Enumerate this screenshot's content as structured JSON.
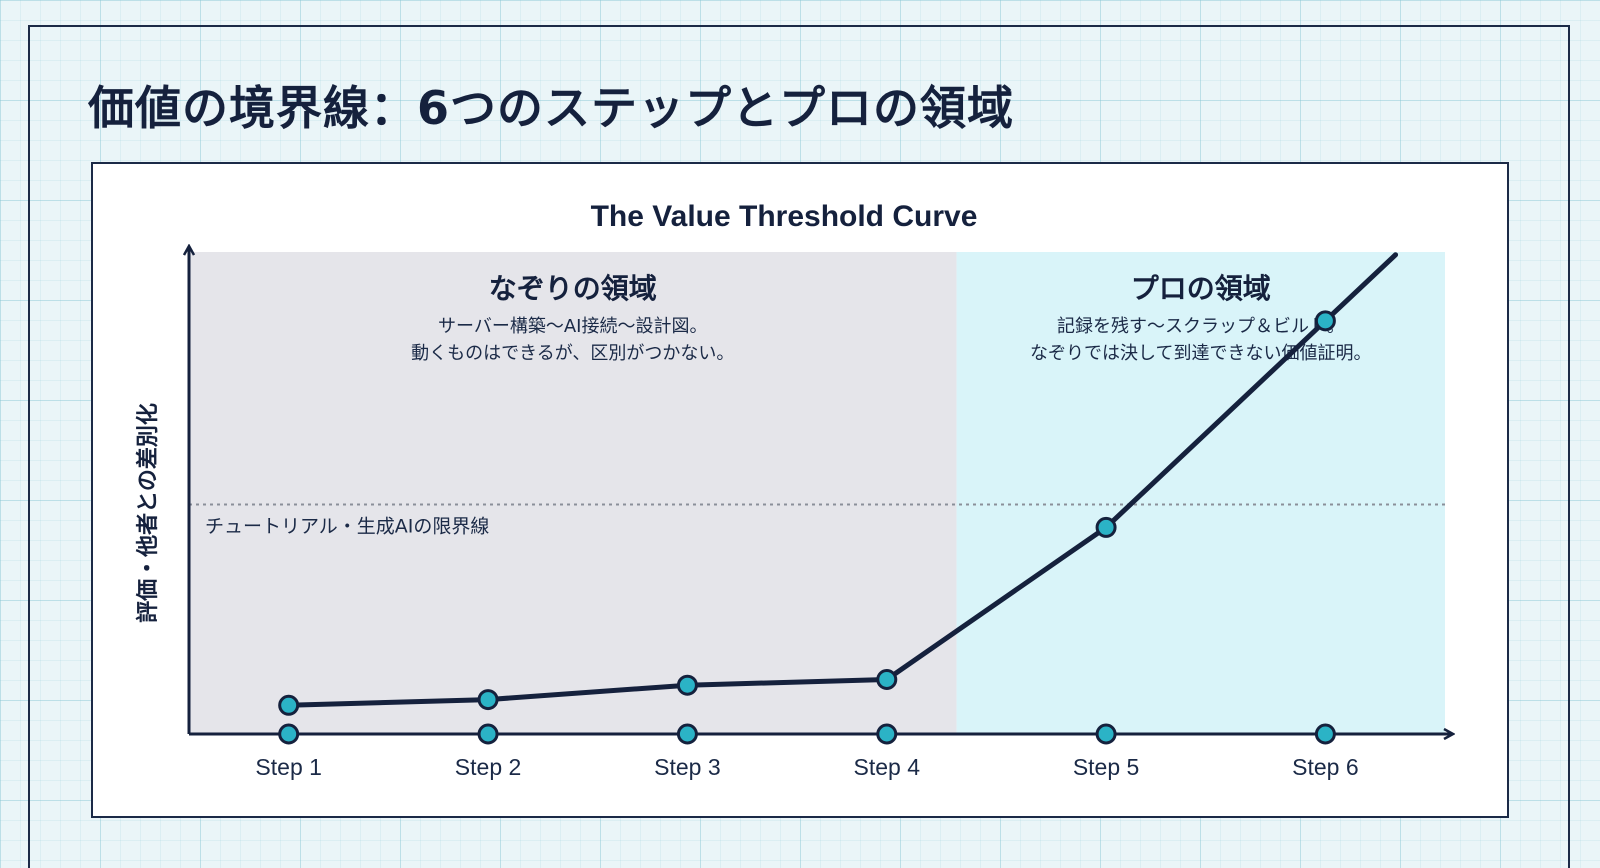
{
  "page": {
    "title": "価値の境界線：6つのステップとプロの領域"
  },
  "colors": {
    "navy": "#15213d",
    "teal": "#2bb3c6",
    "zone_gray": "#e5e5ea",
    "zone_cyan": "#d9f4f9"
  },
  "chart_data": {
    "type": "line",
    "title": "The Value Threshold Curve",
    "ylabel": "評価・他者との差別化",
    "xlabel": "",
    "categories": [
      "Step 1",
      "Step 2",
      "Step 3",
      "Step 4",
      "Step 5",
      "Step 6"
    ],
    "x_positions": [
      0.5,
      1.5,
      2.5,
      3.5,
      4.6,
      5.7
    ],
    "x_range": [
      0,
      6.3
    ],
    "series": [
      {
        "values": [
          5,
          6,
          8.5,
          9.5,
          36,
          72
        ]
      }
    ],
    "ylim": [
      0,
      84
    ],
    "threshold": {
      "value": 40,
      "label": "チュートリアル・生成AIの限界線",
      "style": "dotted"
    },
    "zones": [
      {
        "name": "なぞりの領域",
        "x_range": [
          0,
          3.85
        ],
        "color": "#e5e5ea",
        "description": [
          "サーバー構築〜AI接続〜設計図。",
          "動くものはできるが、区別がつかない。"
        ]
      },
      {
        "name": "プロの領域",
        "x_range": [
          3.85,
          6.3
        ],
        "color": "#d9f4f9",
        "description": [
          "記録を残す〜スクラップ＆ビルド。",
          "なぞりでは決して到達できない価値証明。"
        ]
      }
    ],
    "axis_markers": true,
    "grid": false
  }
}
